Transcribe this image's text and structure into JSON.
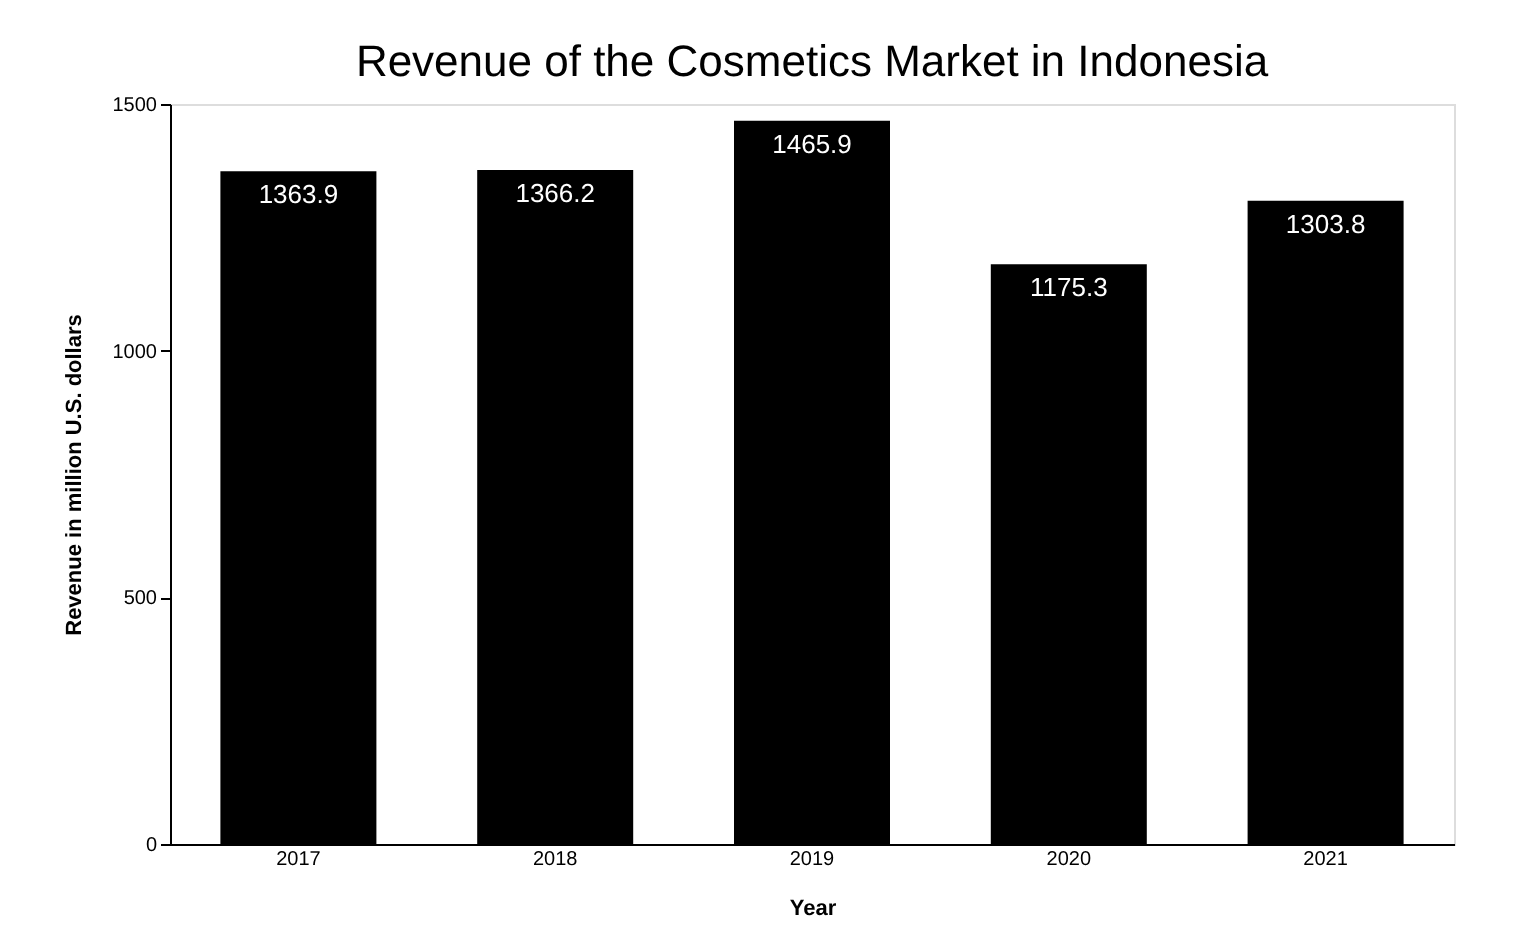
{
  "chart_data": {
    "type": "bar",
    "title": "Revenue of the Cosmetics Market in Indonesia",
    "xlabel": "Year",
    "ylabel": "Revenue in million U.S. dollars",
    "categories": [
      "2017",
      "2018",
      "2019",
      "2020",
      "2021"
    ],
    "values": [
      1363.9,
      1366.2,
      1465.9,
      1175.3,
      1303.8
    ],
    "color": "#000000",
    "ylim": [
      0,
      1500
    ],
    "yticks": [
      0,
      500,
      1000,
      1500
    ],
    "grid": false,
    "data_labels": true
  }
}
